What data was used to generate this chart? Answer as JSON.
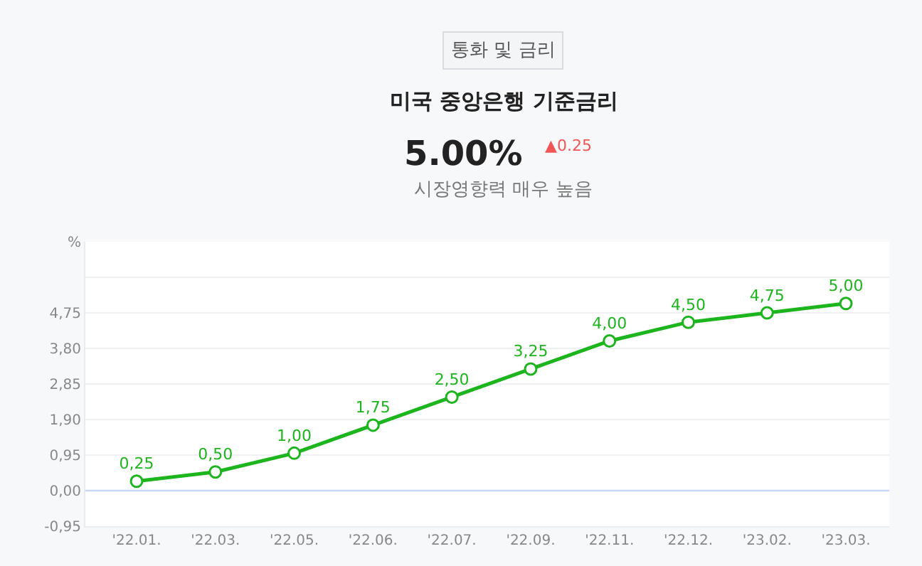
{
  "chart_data": {
    "type": "line",
    "title": "미국 중앙은행 기준금리",
    "subtitle": "통화 및 금리",
    "annotations": [
      "5.00%",
      "▲0.25",
      "시장영향력 매우 높음"
    ],
    "categories": [
      "'22.01.",
      "'22.03.",
      "'22.05.",
      "'22.06.",
      "'22.07.",
      "'22.09.",
      "'22.11.",
      "'22.12.",
      "'23.02.",
      "'23.03."
    ],
    "series": [
      {
        "color": "#1db51d",
        "values": [
          0.25,
          0.5,
          1.0,
          1.75,
          2.5,
          3.25,
          4.0,
          4.5,
          4.75,
          5.0
        ],
        "value_labels": [
          "0,25",
          "0,50",
          "1,00",
          "1,75",
          "2,50",
          "3,25",
          "4,00",
          "4,50",
          "4,75",
          "5,00"
        ]
      }
    ],
    "ylim": [
      -0.95,
      6.65
    ],
    "yticks": [
      {
        "value": -0.95,
        "label": "-0,95"
      },
      {
        "value": 0,
        "label": "0,00"
      },
      {
        "value": 0.95,
        "label": "0,95"
      },
      {
        "value": 1.9,
        "label": "1,90"
      },
      {
        "value": 2.85,
        "label": "2,85"
      },
      {
        "value": 3.8,
        "label": "3,80"
      },
      {
        "value": 4.75,
        "label": "4,75"
      },
      {
        "value": 5.7,
        "label": null
      },
      {
        "value": 6.65,
        "label": "%"
      }
    ],
    "ref_lines": [
      {
        "axis": "y",
        "value": 0,
        "color": "#c5d9f5"
      }
    ],
    "grid": "y",
    "marker": "circle",
    "line_style": "solid"
  }
}
